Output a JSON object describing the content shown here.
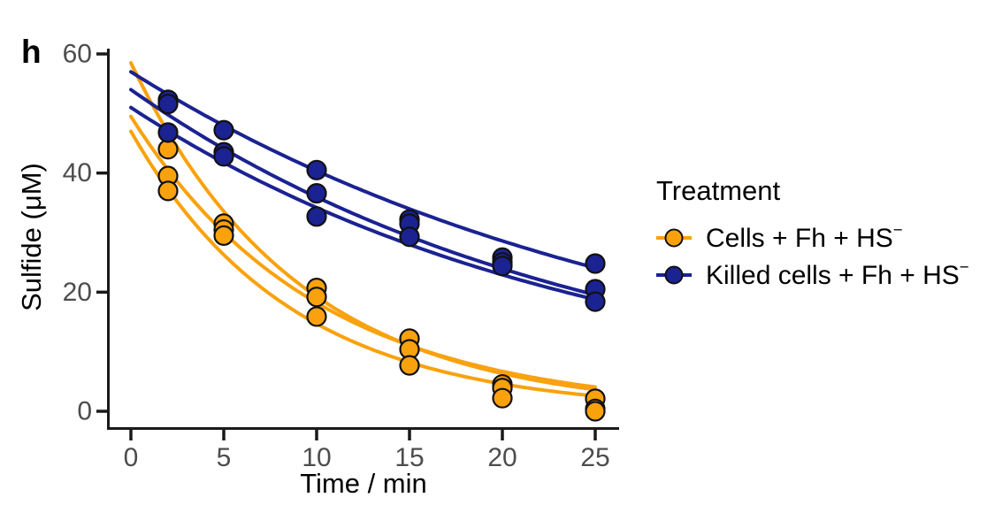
{
  "panel_label": "h",
  "chart_data": {
    "type": "scatter",
    "title": "",
    "xlabel": "Time / min",
    "ylabel": "Sulfide (μM)",
    "xlim": [
      -1.3,
      26.3
    ],
    "ylim": [
      -2.9,
      62
    ],
    "xticks": [
      0,
      5,
      10,
      15,
      20,
      25
    ],
    "yticks": [
      0,
      20,
      40,
      60
    ],
    "grid": false,
    "axis_color": "#1A1A1A",
    "tick_label_color": "#4D4D4D",
    "legend": {
      "title": "Treatment",
      "position": "right-center",
      "entries": [
        {
          "label": "Cells + Fh + HS",
          "superscript": "−",
          "color": "#F9A20E"
        },
        {
          "label": "Killed cells + Fh + HS",
          "superscript": "−",
          "color": "#1B2291"
        }
      ]
    },
    "series": [
      {
        "name": "Cells + Fh + HS−",
        "color": "#F9A20E",
        "marker": "circle",
        "points": [
          [
            2,
            44
          ],
          [
            2,
            39.5
          ],
          [
            2,
            37
          ],
          [
            5,
            31.5
          ],
          [
            5,
            30.5
          ],
          [
            5,
            29.5
          ],
          [
            10,
            20.7
          ],
          [
            10,
            19.2
          ],
          [
            10,
            15.9
          ],
          [
            15,
            12.2
          ],
          [
            15,
            10.4
          ],
          [
            15,
            7.7
          ],
          [
            20,
            4.5
          ],
          [
            20,
            3.9
          ],
          [
            20,
            2.2
          ],
          [
            25,
            2.1
          ],
          [
            25,
            0.4
          ],
          [
            25,
            0
          ]
        ],
        "fit_curves": [
          {
            "model": "exponential-decay",
            "y0": 58.5,
            "tau": 9.0,
            "t_start": 0,
            "t_end": 25
          },
          {
            "model": "exponential-decay",
            "y0": 49.5,
            "tau": 10.0,
            "t_start": 0,
            "t_end": 25
          },
          {
            "model": "exponential-decay",
            "y0": 47.0,
            "tau": 8.6,
            "t_start": 0,
            "t_end": 25
          }
        ]
      },
      {
        "name": "Killed cells + Fh + HS−",
        "color": "#1B2291",
        "marker": "circle",
        "points": [
          [
            2,
            52.3
          ],
          [
            2,
            51.6
          ],
          [
            2,
            46.8
          ],
          [
            5,
            47.2
          ],
          [
            5,
            43.5
          ],
          [
            5,
            42.8
          ],
          [
            10,
            40.5
          ],
          [
            10,
            36.6
          ],
          [
            10,
            32.7
          ],
          [
            15,
            32.2
          ],
          [
            15,
            31.5
          ],
          [
            15,
            29.3
          ],
          [
            20,
            25.8
          ],
          [
            20,
            25.0
          ],
          [
            20,
            24.4
          ],
          [
            25,
            24.8
          ],
          [
            25,
            20.5
          ],
          [
            25,
            18.4
          ]
        ],
        "fit_curves": [
          {
            "model": "exponential-decay",
            "y0": 57.0,
            "tau": 29.0,
            "t_start": 0,
            "t_end": 25
          },
          {
            "model": "exponential-decay",
            "y0": 54.0,
            "tau": 24.6,
            "t_start": 0,
            "t_end": 25
          },
          {
            "model": "exponential-decay",
            "y0": 51.0,
            "tau": 25.0,
            "t_start": 0,
            "t_end": 25
          }
        ]
      }
    ]
  }
}
